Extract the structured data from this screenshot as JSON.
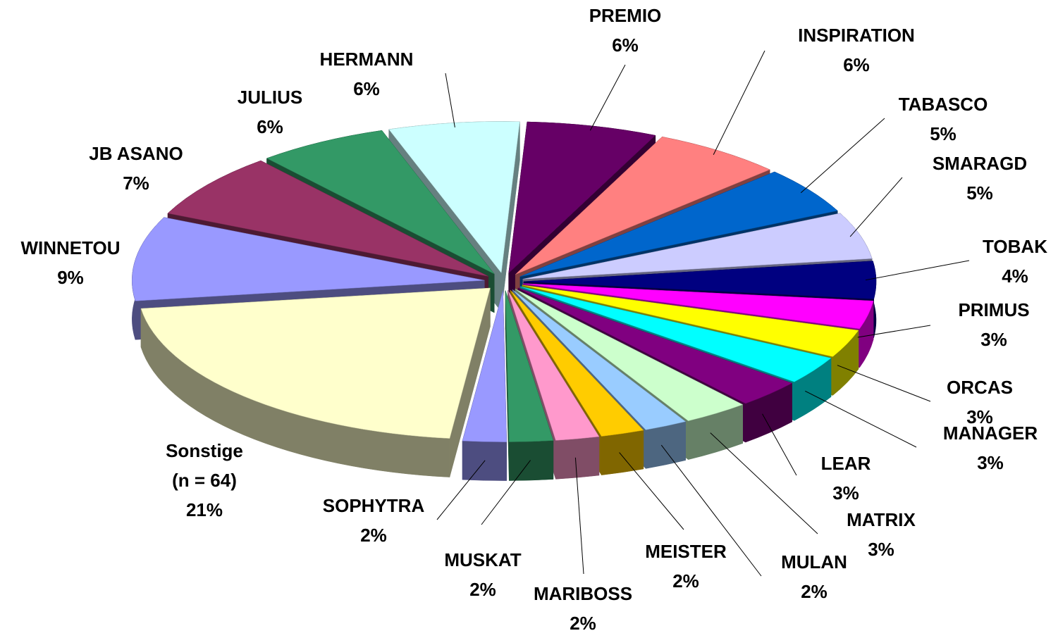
{
  "chart_data": {
    "type": "pie",
    "three_d": true,
    "exploded": true,
    "categories": [
      "PREMIO",
      "INSPIRATION",
      "TABASCO",
      "SMARAGD",
      "TOBAK",
      "PRIMUS",
      "ORCAS",
      "MANAGER",
      "LEAR",
      "MATRIX",
      "MULAN",
      "MEISTER",
      "MARIBOSS",
      "MUSKAT",
      "SOPHYTRA",
      "Sonstige (n = 64)",
      "WINNETOU",
      "JB ASANO",
      "JULIUS",
      "HERMANN"
    ],
    "values": [
      6,
      6,
      5,
      5,
      4,
      3,
      3,
      3,
      3,
      3,
      2,
      2,
      2,
      2,
      2,
      21,
      9,
      7,
      6,
      6
    ],
    "value_labels": [
      "6%",
      "6%",
      "5%",
      "5%",
      "4%",
      "3%",
      "3%",
      "3%",
      "3%",
      "3%",
      "2%",
      "2%",
      "2%",
      "2%",
      "2%",
      "21%",
      "9%",
      "7%",
      "6%",
      "6%"
    ],
    "colors": [
      "#660066",
      "#ff8080",
      "#0066cc",
      "#ccccff",
      "#000080",
      "#ff00ff",
      "#ffff00",
      "#00ffff",
      "#800080",
      "#ccffcc",
      "#99ccff",
      "#ffcc00",
      "#ff99cc",
      "#339966",
      "#9999ff",
      "#ffffcc",
      "#9999ff",
      "#993366",
      "#339966",
      "#ccffff"
    ]
  }
}
